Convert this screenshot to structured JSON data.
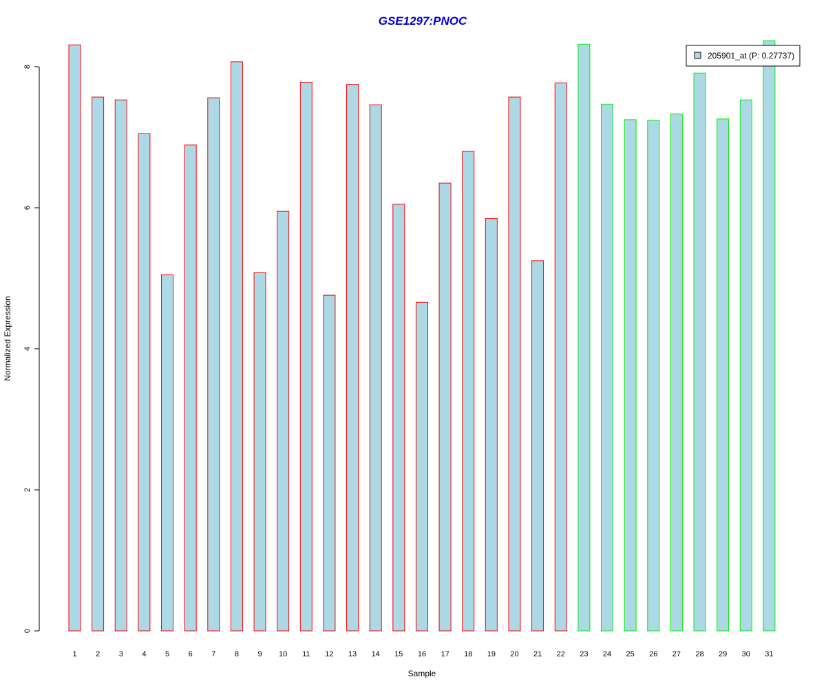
{
  "chart_data": {
    "type": "bar",
    "title": "GSE1297:PNOC",
    "xlabel": "Sample",
    "ylabel": "Normalized Expression",
    "ylim": [
      0,
      8.3
    ],
    "yticks": [
      0,
      2,
      4,
      6,
      8
    ],
    "categories": [
      "1",
      "2",
      "3",
      "4",
      "5",
      "6",
      "7",
      "8",
      "9",
      "10",
      "11",
      "12",
      "13",
      "14",
      "15",
      "16",
      "17",
      "18",
      "19",
      "20",
      "21",
      "22",
      "23",
      "24",
      "25",
      "26",
      "27",
      "28",
      "29",
      "30",
      "31"
    ],
    "series": [
      {
        "name": "205901_at (P: 0.27737)",
        "values": [
          8.31,
          7.57,
          7.53,
          7.05,
          5.05,
          6.89,
          7.56,
          8.07,
          5.08,
          5.95,
          7.78,
          4.76,
          7.75,
          7.46,
          6.05,
          4.66,
          6.35,
          6.8,
          5.85,
          7.57,
          5.25,
          7.77,
          8.32,
          7.47,
          7.25,
          7.24,
          7.33,
          7.91,
          7.26,
          7.53,
          8.37
        ]
      }
    ],
    "groups": [
      "a",
      "a",
      "a",
      "a",
      "a",
      "a",
      "a",
      "a",
      "a",
      "a",
      "a",
      "a",
      "a",
      "a",
      "a",
      "a",
      "a",
      "a",
      "a",
      "a",
      "a",
      "a",
      "b",
      "b",
      "b",
      "b",
      "b",
      "b",
      "b",
      "b",
      "b"
    ],
    "group_colors": {
      "a": "#ff0000",
      "b": "#00ee00"
    },
    "bar_fill": "#add8e6",
    "title_color": "#0000cc",
    "grid": false,
    "legend_position": "top-right"
  }
}
